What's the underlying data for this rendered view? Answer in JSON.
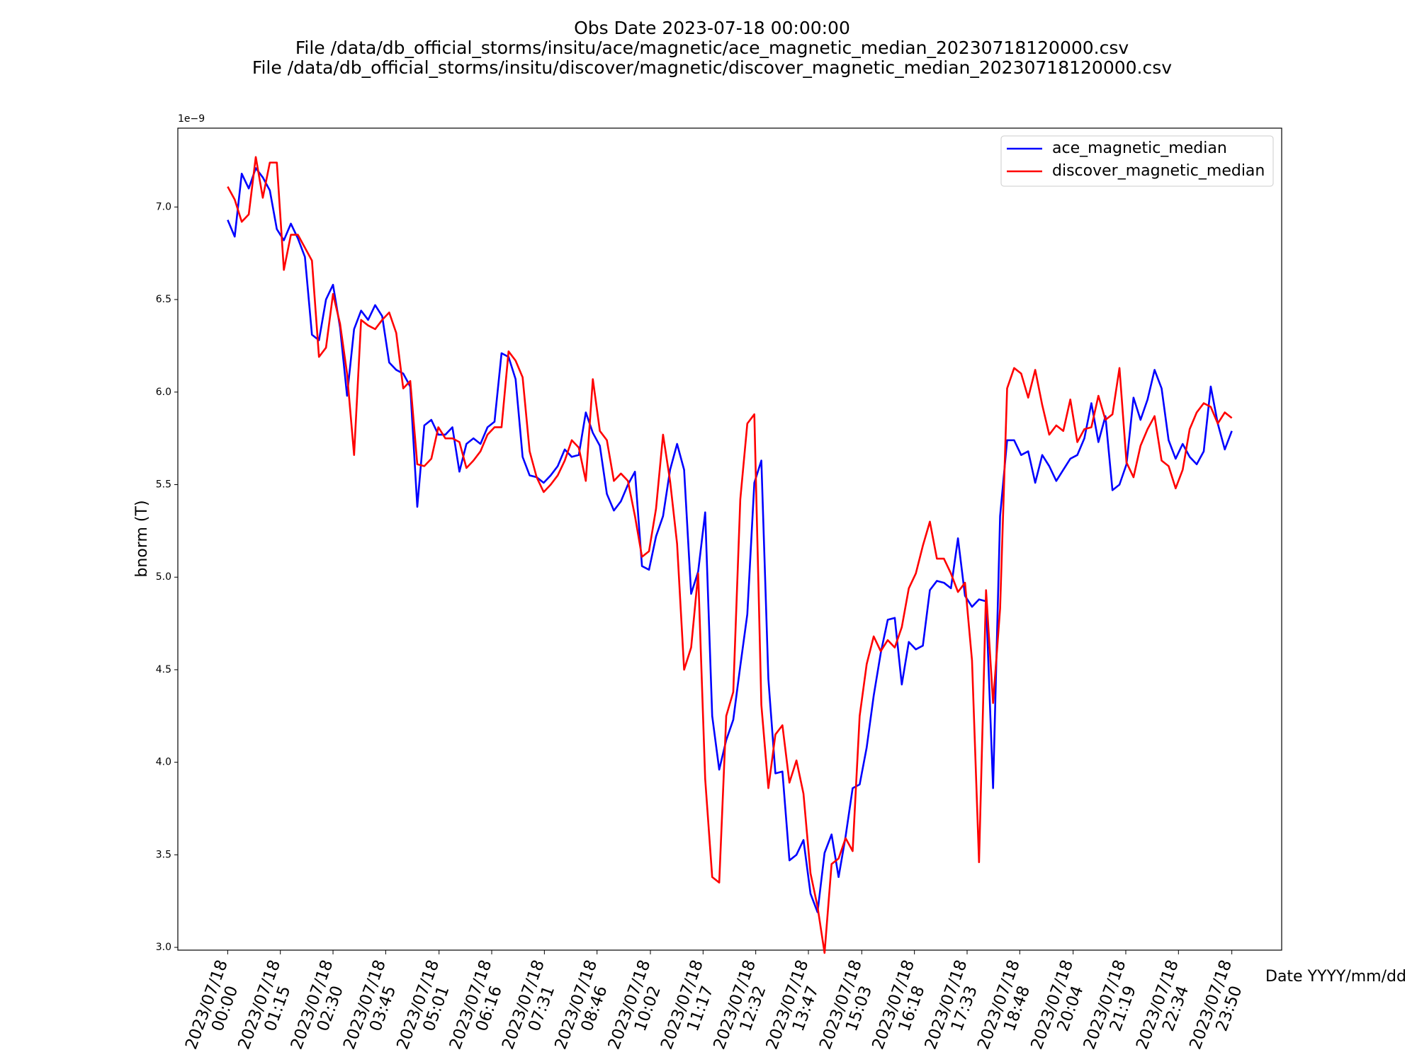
{
  "chart_data": {
    "type": "line",
    "title": [
      "Obs Date 2023-07-18 00:00:00",
      "File /data/db_official_storms/insitu/ace/magnetic/ace_magnetic_median_20230718120000.csv",
      "File /data/db_official_storms/insitu/discover/magnetic/discover_magnetic_median_20230718120000.csv"
    ],
    "xlabel": "Date YYYY/mm/dd",
    "ylabel": "bnorm (T)",
    "y_offset_label": "1e−9",
    "legend": "upper right",
    "grid": false,
    "xlim": [
      "2023/07/17 22:49",
      "2023/07/19 01:01"
    ],
    "xticks": [
      "2023/07/18 00:00",
      "2023/07/18 01:15",
      "2023/07/18 02:30",
      "2023/07/18 03:45",
      "2023/07/18 05:01",
      "2023/07/18 06:16",
      "2023/07/18 07:31",
      "2023/07/18 08:46",
      "2023/07/18 10:02",
      "2023/07/18 11:17",
      "2023/07/18 12:32",
      "2023/07/18 13:47",
      "2023/07/18 15:03",
      "2023/07/18 16:18",
      "2023/07/18 17:33",
      "2023/07/18 18:48",
      "2023/07/18 20:04",
      "2023/07/18 21:19",
      "2023/07/18 22:34",
      "2023/07/18 23:50"
    ],
    "ylim": [
      2.985,
      7.426
    ],
    "yticks": [
      {
        "value": 3,
        "label": "3.0"
      },
      {
        "value": 3.5,
        "label": "3.5"
      },
      {
        "value": 4,
        "label": "4.0"
      },
      {
        "value": 4.5,
        "label": "4.5"
      },
      {
        "value": 5,
        "label": "5.0"
      },
      {
        "value": 5.5,
        "label": "5.5"
      },
      {
        "value": 6,
        "label": "6.0"
      },
      {
        "value": 6.5,
        "label": "6.5"
      },
      {
        "value": 7,
        "label": "7.0"
      }
    ],
    "x": [
      "2023/07/18 00:00",
      "2023/07/18 00:10",
      "2023/07/18 00:20",
      "2023/07/18 00:30",
      "2023/07/18 00:40",
      "2023/07/18 00:50",
      "2023/07/18 01:00",
      "2023/07/18 01:10",
      "2023/07/18 01:20",
      "2023/07/18 01:30",
      "2023/07/18 01:40",
      "2023/07/18 01:50",
      "2023/07/18 02:00",
      "2023/07/18 02:10",
      "2023/07/18 02:20",
      "2023/07/18 02:30",
      "2023/07/18 02:40",
      "2023/07/18 02:50",
      "2023/07/18 03:00",
      "2023/07/18 03:10",
      "2023/07/18 03:20",
      "2023/07/18 03:30",
      "2023/07/18 03:40",
      "2023/07/18 03:50",
      "2023/07/18 04:00",
      "2023/07/18 04:10",
      "2023/07/18 04:20",
      "2023/07/18 04:30",
      "2023/07/18 04:40",
      "2023/07/18 04:50",
      "2023/07/18 05:00",
      "2023/07/18 05:10",
      "2023/07/18 05:20",
      "2023/07/18 05:30",
      "2023/07/18 05:40",
      "2023/07/18 05:50",
      "2023/07/18 06:00",
      "2023/07/18 06:10",
      "2023/07/18 06:20",
      "2023/07/18 06:30",
      "2023/07/18 06:40",
      "2023/07/18 06:50",
      "2023/07/18 07:00",
      "2023/07/18 07:10",
      "2023/07/18 07:20",
      "2023/07/18 07:30",
      "2023/07/18 07:40",
      "2023/07/18 07:50",
      "2023/07/18 08:00",
      "2023/07/18 08:10",
      "2023/07/18 08:20",
      "2023/07/18 08:30",
      "2023/07/18 08:40",
      "2023/07/18 08:50",
      "2023/07/18 09:00",
      "2023/07/18 09:10",
      "2023/07/18 09:20",
      "2023/07/18 09:30",
      "2023/07/18 09:40",
      "2023/07/18 09:50",
      "2023/07/18 10:00",
      "2023/07/18 10:10",
      "2023/07/18 10:20",
      "2023/07/18 10:30",
      "2023/07/18 10:40",
      "2023/07/18 10:50",
      "2023/07/18 11:00",
      "2023/07/18 11:10",
      "2023/07/18 11:20",
      "2023/07/18 11:30",
      "2023/07/18 11:40",
      "2023/07/18 11:50",
      "2023/07/18 12:00",
      "2023/07/18 12:10",
      "2023/07/18 12:20",
      "2023/07/18 12:30",
      "2023/07/18 12:40",
      "2023/07/18 12:50",
      "2023/07/18 13:00",
      "2023/07/18 13:10",
      "2023/07/18 13:20",
      "2023/07/18 13:30",
      "2023/07/18 13:40",
      "2023/07/18 13:50",
      "2023/07/18 14:00",
      "2023/07/18 14:10",
      "2023/07/18 14:20",
      "2023/07/18 14:30",
      "2023/07/18 14:40",
      "2023/07/18 14:50",
      "2023/07/18 15:00",
      "2023/07/18 15:10",
      "2023/07/18 15:20",
      "2023/07/18 15:30",
      "2023/07/18 15:40",
      "2023/07/18 15:50",
      "2023/07/18 16:00",
      "2023/07/18 16:10",
      "2023/07/18 16:20",
      "2023/07/18 16:30",
      "2023/07/18 16:40",
      "2023/07/18 16:50",
      "2023/07/18 17:00",
      "2023/07/18 17:10",
      "2023/07/18 17:20",
      "2023/07/18 17:30",
      "2023/07/18 17:40",
      "2023/07/18 17:50",
      "2023/07/18 18:00",
      "2023/07/18 18:10",
      "2023/07/18 18:20",
      "2023/07/18 18:30",
      "2023/07/18 18:40",
      "2023/07/18 18:50",
      "2023/07/18 19:00",
      "2023/07/18 19:10",
      "2023/07/18 19:20",
      "2023/07/18 19:30",
      "2023/07/18 19:40",
      "2023/07/18 19:50",
      "2023/07/18 20:00",
      "2023/07/18 20:10",
      "2023/07/18 20:20",
      "2023/07/18 20:30",
      "2023/07/18 20:40",
      "2023/07/18 20:50",
      "2023/07/18 21:00",
      "2023/07/18 21:10",
      "2023/07/18 21:20",
      "2023/07/18 21:30",
      "2023/07/18 21:40",
      "2023/07/18 21:50",
      "2023/07/18 22:00",
      "2023/07/18 22:10",
      "2023/07/18 22:20",
      "2023/07/18 22:30",
      "2023/07/18 22:40",
      "2023/07/18 22:50",
      "2023/07/18 23:00",
      "2023/07/18 23:10",
      "2023/07/18 23:20",
      "2023/07/18 23:30",
      "2023/07/18 23:40",
      "2023/07/18 23:50"
    ],
    "series": [
      {
        "name": "ace_magnetic_median",
        "color": "#0000ff",
        "values": [
          6.93,
          6.84,
          7.18,
          7.1,
          7.21,
          7.16,
          7.09,
          6.88,
          6.82,
          6.91,
          6.83,
          6.73,
          6.31,
          6.28,
          6.5,
          6.58,
          6.35,
          5.98,
          6.34,
          6.44,
          6.39,
          6.47,
          6.41,
          6.16,
          6.12,
          6.1,
          6.03,
          5.38,
          5.82,
          5.85,
          5.77,
          5.77,
          5.81,
          5.57,
          5.72,
          5.75,
          5.72,
          5.81,
          5.84,
          6.21,
          6.19,
          6.07,
          5.65,
          5.55,
          5.54,
          5.51,
          5.55,
          5.6,
          5.69,
          5.65,
          5.66,
          5.89,
          5.78,
          5.71,
          5.45,
          5.36,
          5.41,
          5.5,
          5.57,
          5.06,
          5.04,
          5.22,
          5.33,
          5.58,
          5.72,
          5.58,
          4.91,
          5.03,
          5.35,
          4.25,
          3.96,
          4.12,
          4.23,
          4.52,
          4.8,
          5.51,
          5.63,
          4.45,
          3.94,
          3.95,
          3.47,
          3.5,
          3.58,
          3.29,
          3.19,
          3.51,
          3.61,
          3.38,
          3.6,
          3.86,
          3.88,
          4.08,
          4.36,
          4.59,
          4.77,
          4.78,
          4.42,
          4.65,
          4.61,
          4.63,
          4.93,
          4.98,
          4.97,
          4.94,
          5.21,
          4.9,
          4.84,
          4.88,
          4.87,
          3.86,
          5.33,
          5.74,
          5.74,
          5.66,
          5.68,
          5.51,
          5.66,
          5.6,
          5.52,
          5.58,
          5.64,
          5.66,
          5.75,
          5.94,
          5.73,
          5.87,
          5.47,
          5.5,
          5.61,
          5.97,
          5.85,
          5.96,
          6.12,
          6.02,
          5.74,
          5.64,
          5.72,
          5.65,
          5.61,
          5.68,
          6.03,
          5.83,
          5.69,
          5.79
        ]
      },
      {
        "name": "discover_magnetic_median",
        "color": "#ff0000",
        "values": [
          7.11,
          7.04,
          6.92,
          6.96,
          7.27,
          7.05,
          7.24,
          7.24,
          6.66,
          6.85,
          6.85,
          6.78,
          6.71,
          6.19,
          6.24,
          6.53,
          6.37,
          6.1,
          5.66,
          6.39,
          6.36,
          6.34,
          6.39,
          6.43,
          6.32,
          6.02,
          6.06,
          5.61,
          5.6,
          5.64,
          5.81,
          5.75,
          5.75,
          5.73,
          5.59,
          5.63,
          5.68,
          5.77,
          5.81,
          5.81,
          6.22,
          6.17,
          6.08,
          5.68,
          5.54,
          5.46,
          5.5,
          5.55,
          5.63,
          5.74,
          5.7,
          5.52,
          6.07,
          5.79,
          5.74,
          5.52,
          5.56,
          5.52,
          5.33,
          5.11,
          5.14,
          5.37,
          5.77,
          5.52,
          5.18,
          4.5,
          4.62,
          5.02,
          3.91,
          3.38,
          3.35,
          4.25,
          4.38,
          5.42,
          5.83,
          5.88,
          4.31,
          3.86,
          4.15,
          4.2,
          3.89,
          4.01,
          3.83,
          3.4,
          3.22,
          2.97,
          3.45,
          3.48,
          3.59,
          3.52,
          4.25,
          4.53,
          4.68,
          4.6,
          4.66,
          4.62,
          4.73,
          4.94,
          5.02,
          5.17,
          5.3,
          5.1,
          5.1,
          5.02,
          4.92,
          4.97,
          4.55,
          3.46,
          4.93,
          4.32,
          4.83,
          6.02,
          6.13,
          6.1,
          5.97,
          6.12,
          5.93,
          5.77,
          5.82,
          5.79,
          5.96,
          5.73,
          5.8,
          5.81,
          5.98,
          5.85,
          5.88,
          6.13,
          5.62,
          5.54,
          5.71,
          5.8,
          5.87,
          5.63,
          5.6,
          5.48,
          5.58,
          5.8,
          5.89,
          5.94,
          5.92,
          5.83,
          5.89,
          5.86
        ]
      }
    ]
  }
}
